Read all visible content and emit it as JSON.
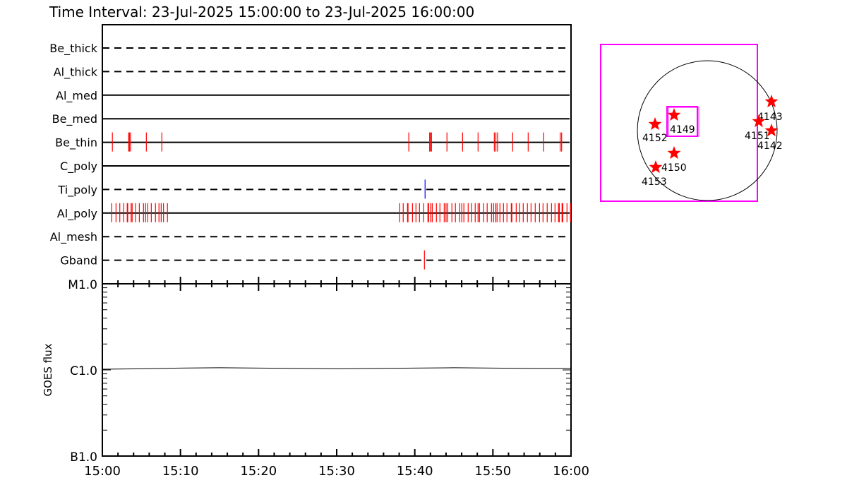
{
  "title": "Time Interval: 23-Jul-2025 15:00:00 to 23-Jul-2025 16:00:00",
  "colors": {
    "obs_tick": "#ff0000",
    "ti_tick": "#0000ff",
    "fov_box": "#ff00ff",
    "star": "#ff0000",
    "axis": "#000000"
  },
  "chart_data": [
    {
      "type": "timeline",
      "xlim": [
        "15:00:00",
        "16:00:00"
      ],
      "x_tick_labels": [
        "15:00",
        "15:10",
        "15:20",
        "15:30",
        "15:40",
        "15:50",
        "16:00"
      ],
      "rows": [
        {
          "label": "Be_thick",
          "line": "dashed",
          "color": "#ff0000",
          "times": []
        },
        {
          "label": "Al_thick",
          "line": "dashed",
          "color": "#ff0000",
          "times": []
        },
        {
          "label": "Al_med",
          "line": "solid",
          "color": "#ff0000",
          "times": []
        },
        {
          "label": "Be_med",
          "line": "solid",
          "color": "#ff0000",
          "times": []
        },
        {
          "label": "Be_thin",
          "line": "solid",
          "color": "#ff0000",
          "times": [
            "15:01:17",
            "15:03:22",
            "15:03:28",
            "15:03:37",
            "15:05:38",
            "15:07:37",
            "15:39:14",
            "15:41:54",
            "15:42:01",
            "15:42:08",
            "15:44:07",
            "15:46:07",
            "15:48:06",
            "15:50:11",
            "15:50:23",
            "15:50:36",
            "15:52:32",
            "15:54:31",
            "15:56:30",
            "15:58:37",
            "15:58:48"
          ]
        },
        {
          "label": "C_poly",
          "line": "solid",
          "color": "#ff0000",
          "times": []
        },
        {
          "label": "Ti_poly",
          "line": "dashed",
          "color": "#0000ff",
          "times": [
            "15:41:19"
          ]
        },
        {
          "label": "Al_poly",
          "line": "solid",
          "color": "#ff0000",
          "times": [
            "15:01:12",
            "15:01:45",
            "15:02:14",
            "15:02:44",
            "15:03:11",
            "15:03:15",
            "15:03:41",
            "15:03:49",
            "15:04:16",
            "15:04:44",
            "15:05:16",
            "15:05:32",
            "15:05:49",
            "15:06:16",
            "15:06:48",
            "15:07:15",
            "15:07:32",
            "15:07:50",
            "15:08:20",
            "15:38:04",
            "15:38:31",
            "15:39:04",
            "15:39:08",
            "15:39:42",
            "15:40:09",
            "15:40:36",
            "15:41:08",
            "15:41:41",
            "15:41:46",
            "15:42:03",
            "15:42:14",
            "15:42:46",
            "15:43:13",
            "15:43:46",
            "15:44:00",
            "15:44:13",
            "15:44:45",
            "15:45:12",
            "15:45:45",
            "15:46:01",
            "15:46:17",
            "15:46:50",
            "15:47:17",
            "15:47:44",
            "15:48:06",
            "15:48:17",
            "15:48:49",
            "15:49:16",
            "15:49:49",
            "15:50:05",
            "15:50:22",
            "15:50:32",
            "15:50:54",
            "15:51:21",
            "15:51:48",
            "15:52:21",
            "15:52:26",
            "15:52:59",
            "15:53:26",
            "15:53:53",
            "15:54:25",
            "15:54:53",
            "15:55:25",
            "15:55:58",
            "15:56:25",
            "15:56:57",
            "15:57:30",
            "15:57:57",
            "15:58:24",
            "15:58:30",
            "15:58:51",
            "15:58:57",
            "15:59:29",
            "15:59:56"
          ]
        },
        {
          "label": "Al_mesh",
          "line": "dashed",
          "color": "#ff0000",
          "times": []
        },
        {
          "label": "Gband",
          "line": "dashed",
          "color": "#ff0000",
          "times": [
            "15:41:14"
          ]
        }
      ]
    },
    {
      "type": "line",
      "ylabel": "GOES flux",
      "yscale": "log",
      "ylim": [
        1e-07,
        1e-05
      ],
      "y_tick_labels": [
        {
          "value": 1e-05,
          "label": "M1.0"
        },
        {
          "value": 1e-06,
          "label": "C1.0"
        },
        {
          "value": 1e-07,
          "label": "B1.0"
        }
      ],
      "x_tick_labels": [
        "15:00",
        "15:10",
        "15:20",
        "15:30",
        "15:40",
        "15:50",
        "16:00"
      ],
      "series": [
        {
          "x": [
            "15:00:00",
            "15:05:00",
            "15:10:00",
            "15:15:00",
            "15:20:00",
            "15:25:00",
            "15:30:00",
            "15:35:00",
            "15:40:00",
            "15:45:00",
            "15:50:00",
            "15:55:00",
            "16:00:00"
          ],
          "y": [
            1.02e-06,
            1.03e-06,
            1.05e-06,
            1.06e-06,
            1.05e-06,
            1.04e-06,
            1.03e-06,
            1.04e-06,
            1.05e-06,
            1.06e-06,
            1.05e-06,
            1.04e-06,
            1.04e-06
          ]
        }
      ]
    }
  ],
  "sun_map": {
    "active_regions": [
      {
        "label": "4152"
      },
      {
        "label": "4149"
      },
      {
        "label": "4150"
      },
      {
        "label": "4153"
      },
      {
        "label": "4143"
      },
      {
        "label": "4151"
      },
      {
        "label": "4142"
      }
    ]
  }
}
